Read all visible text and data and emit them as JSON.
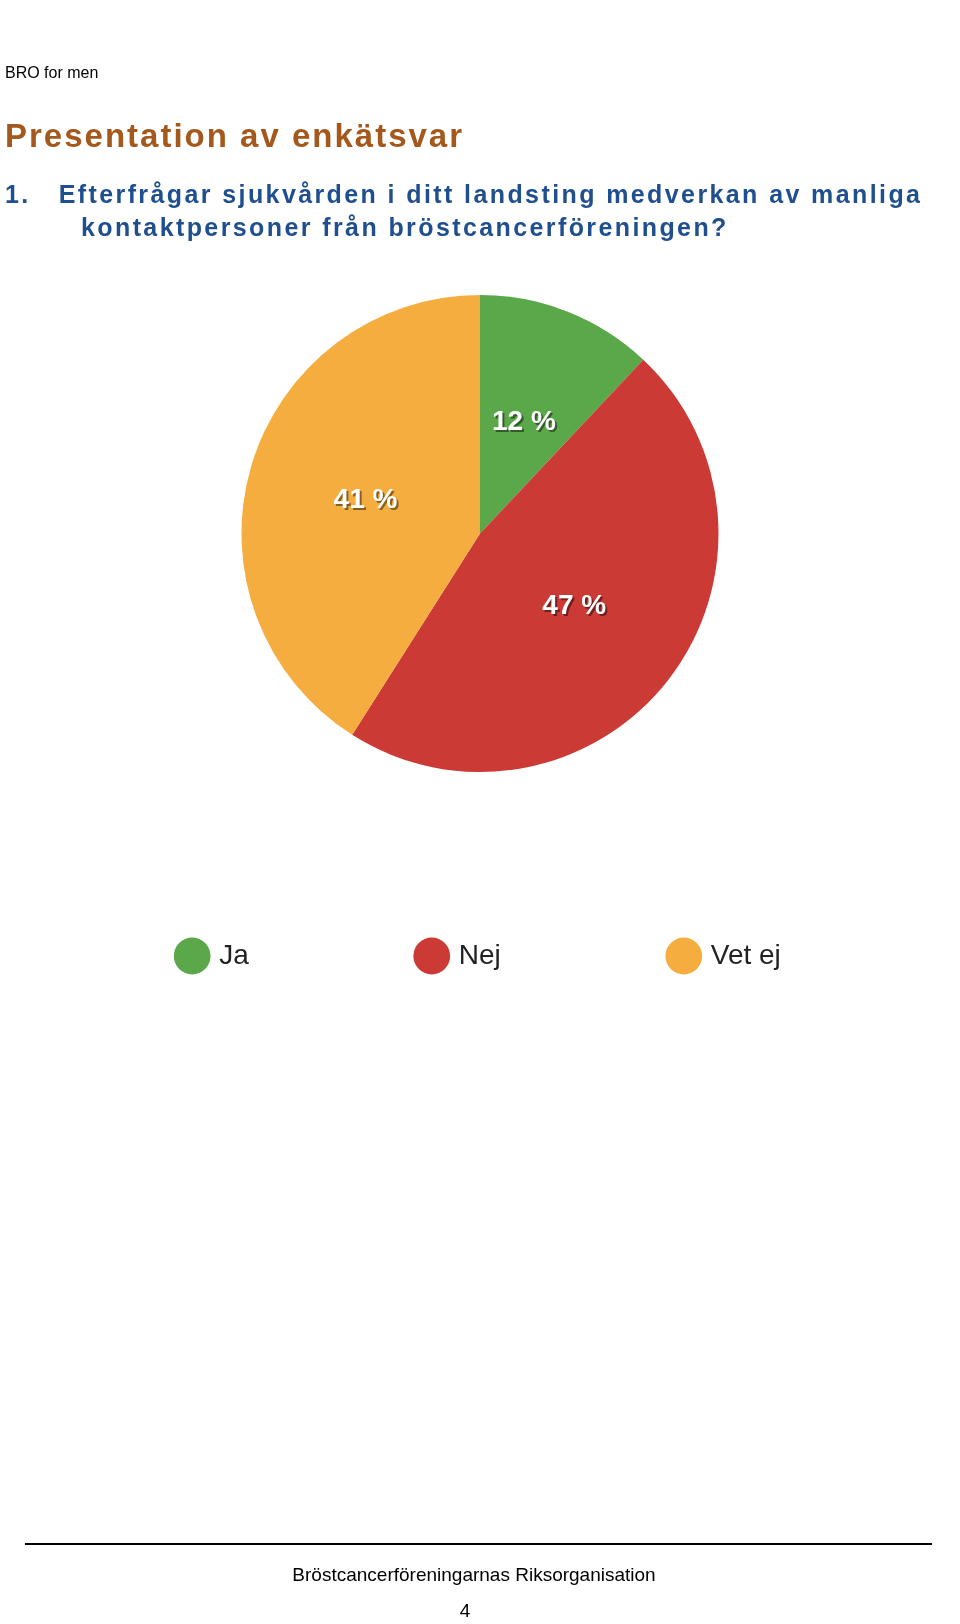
{
  "chart_data": {
    "type": "pie",
    "title": "Presentation av enkätsvar",
    "subtitle": "1.   Efterfrågar sjukvården i ditt landsting medverkan av manliga kontaktpersoner från bröstcancerföreningen?",
    "categories": [
      "Ja",
      "Nej",
      "Vet ej"
    ],
    "values": [
      12,
      47,
      41
    ],
    "value_labels": [
      "12 %",
      "47 %",
      "41 %"
    ],
    "colors": [
      "#5aa84a",
      "#cc3a35",
      "#f4ad3e"
    ],
    "legend": "bottom",
    "annotations": [
      "BRO for men",
      "Bröstcancerföreningarnas Riksorganisation",
      "4"
    ]
  }
}
